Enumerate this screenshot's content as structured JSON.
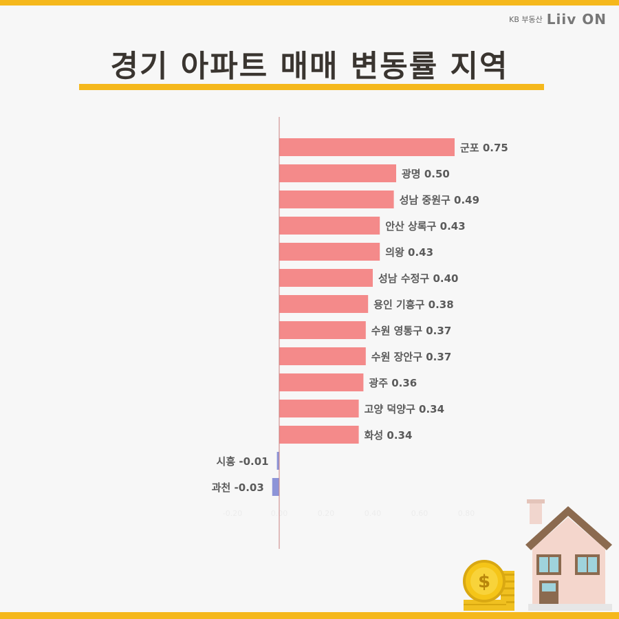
{
  "brand": {
    "kb": "KB 부동산",
    "liiv": "Liiv ON"
  },
  "title": "경기 아파트 매매 변동률 지역",
  "colors": {
    "positive": "#f48a8a",
    "negative": "#8d94d8",
    "accent": "#f5b81c",
    "axis": "#c87f7f"
  },
  "chart_data": {
    "type": "bar",
    "orientation": "horizontal",
    "categories": [
      "군포",
      "광명",
      "성남 중원구",
      "안산 상록구",
      "의왕",
      "성남 수정구",
      "용인 기흥구",
      "수원 영통구",
      "수원 장안구",
      "광주",
      "고양 덕양구",
      "화성",
      "시흥",
      "과천"
    ],
    "values": [
      0.75,
      0.5,
      0.49,
      0.43,
      0.43,
      0.4,
      0.38,
      0.37,
      0.37,
      0.36,
      0.34,
      0.34,
      -0.01,
      -0.03
    ],
    "labels": [
      "군포 0.75",
      "광명 0.50",
      "성남 중원구 0.49",
      "안산 상록구 0.43",
      "의왕 0.43",
      "성남 수정구 0.40",
      "용인 기흥구 0.38",
      "수원 영통구 0.37",
      "수원 장안구 0.37",
      "광주 0.36",
      "고양 덕양구 0.34",
      "화성 0.34",
      "시흥 -0.01",
      "과천 -0.03"
    ],
    "xlim": [
      -0.2,
      1.0
    ],
    "ticks": [
      "-0.20",
      "0.00",
      "0.20",
      "0.40",
      "0.60",
      "0.80"
    ],
    "tick_values": [
      -0.2,
      0.0,
      0.2,
      0.4,
      0.6,
      0.8
    ],
    "grid": false,
    "legend": "none"
  }
}
